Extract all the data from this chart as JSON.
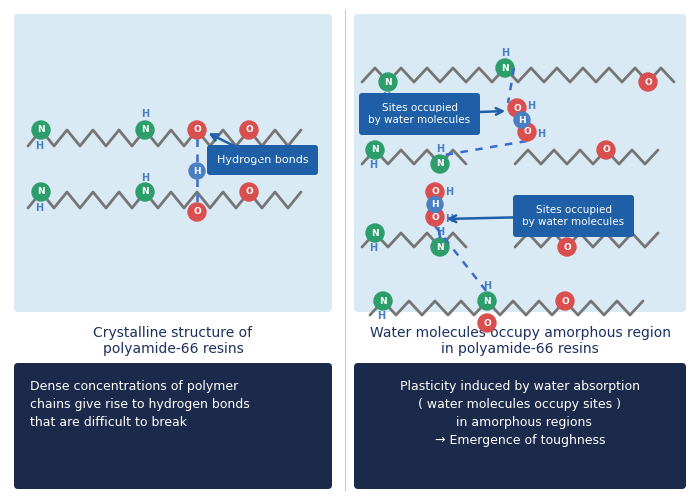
{
  "bg_color": "#ffffff",
  "panel_bg": "#daeaf5",
  "dark_box_color": "#1b2a4a",
  "dark_box_text_color": "#ffffff",
  "node_color": "#757575",
  "N_color": "#2d9e6b",
  "O_color": "#d94f4f",
  "H_color": "#4a7fc1",
  "hbond_color": "#3a6bcc",
  "callout_color": "#1e5fa8",
  "title_left": "Crystalline structure of\npolyamide-66 resins",
  "title_right": "Water molecules occupy amorphous region\nin polyamide-66 resins",
  "desc_left": "Dense concentrations of polymer\nchains give rise to hydrogen bonds\nthat are difficult to break",
  "desc_right": "Plasticity induced by water absorption\n( water molecules occupy sites )\n  in amorphous regions\n→ Emergence of toughness",
  "label_hbond": "Hydrogen bonds",
  "label_water1": "Sites occupied\nby water molecules",
  "label_water2": "Sites occupied\nby water molecules"
}
